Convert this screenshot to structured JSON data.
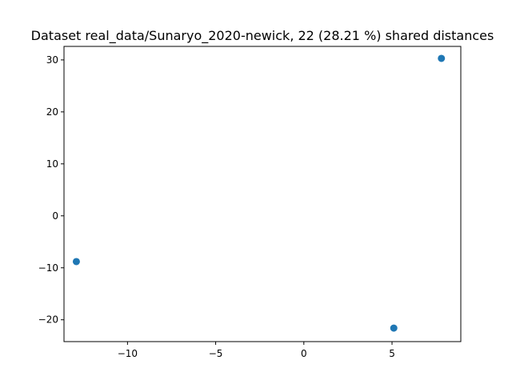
{
  "chart_data": {
    "type": "scatter",
    "title": "Dataset real_data/Sunaryo_2020-newick, 22 (28.21 %) shared distances",
    "xlabel": "",
    "ylabel": "",
    "xlim": [
      -13.6,
      8.9
    ],
    "ylim": [
      -24.2,
      32.6
    ],
    "x_ticks": [
      -10,
      -5,
      0,
      5
    ],
    "x_tick_labels": [
      "−10",
      "−5",
      "0",
      "5"
    ],
    "y_ticks": [
      -20,
      -10,
      0,
      10,
      20,
      30
    ],
    "y_tick_labels": [
      "−20",
      "−10",
      "0",
      "10",
      "20",
      "30"
    ],
    "grid": false,
    "legend": false,
    "marker_color": "#1f77b4",
    "points": [
      {
        "x": -12.9,
        "y": -8.8
      },
      {
        "x": 5.1,
        "y": -21.6
      },
      {
        "x": 7.8,
        "y": 30.3
      }
    ]
  }
}
